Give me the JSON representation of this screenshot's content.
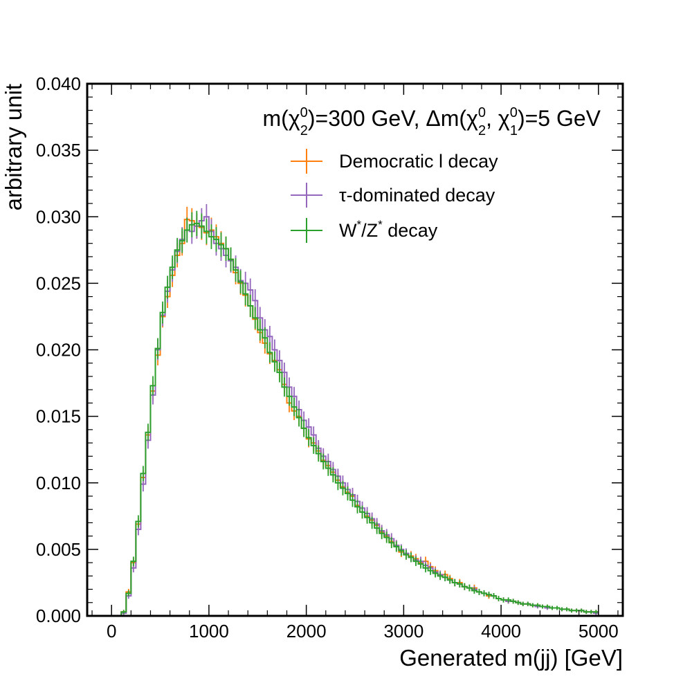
{
  "chart_data": {
    "type": "line",
    "xlabel": "Generated m(jj) [GeV]",
    "ylabel": "arbitrary unit",
    "xlim": [
      -250,
      5250
    ],
    "ylim": [
      0,
      0.04
    ],
    "xticks": [
      "0",
      "1000",
      "2000",
      "3000",
      "4000",
      "5000"
    ],
    "yticks": [
      "0.000",
      "0.005",
      "0.010",
      "0.015",
      "0.020",
      "0.025",
      "0.030",
      "0.035",
      "0.040"
    ],
    "grid": false,
    "legend_position": "top-right",
    "annotation": {
      "prefix": "m(",
      "chi": "χ",
      "chi_sub_a": "2",
      "chi_sup_a": "0",
      "mid": ")=300 GeV, Δm(",
      "chi_sub_b": "2",
      "chi_sup_b": "0",
      "comma": ", ",
      "chi_sub_c": "1",
      "chi_sup_c": "0",
      "suffix": ")=5 GeV"
    },
    "legend": [
      {
        "name_main": "Democratic ",
        "name_char": "l",
        "name_rest": " decay",
        "color": "#ff7f0e"
      },
      {
        "name_main": "",
        "name_char": "τ",
        "name_rest": "-dominated decay",
        "color": "#9467bd"
      },
      {
        "name_main": "W",
        "name_sup": "*",
        "name_mid": "/Z",
        "name_sup2": "*",
        "name_rest": " decay",
        "color": "#2ca02c"
      }
    ],
    "bin_width": 50,
    "bin_start": 0,
    "series": [
      {
        "color": "#ff7f0e",
        "values": [
          0.0,
          0.0,
          0.0003,
          0.0018,
          0.004,
          0.0069,
          0.0104,
          0.0136,
          0.0169,
          0.0196,
          0.0225,
          0.024,
          0.0256,
          0.0271,
          0.028,
          0.0298,
          0.0297,
          0.0293,
          0.0292,
          0.0288,
          0.029,
          0.0285,
          0.028,
          0.0276,
          0.0268,
          0.0258,
          0.025,
          0.0241,
          0.0233,
          0.0223,
          0.0213,
          0.0205,
          0.0197,
          0.0192,
          0.0185,
          0.0174,
          0.016,
          0.0154,
          0.015,
          0.0141,
          0.0133,
          0.013,
          0.0124,
          0.0117,
          0.0113,
          0.0108,
          0.0102,
          0.0097,
          0.0093,
          0.009,
          0.0083,
          0.0078,
          0.0075,
          0.0072,
          0.0068,
          0.0063,
          0.006,
          0.0056,
          0.0053,
          0.0048,
          0.0046,
          0.0045,
          0.0043,
          0.004,
          0.0041,
          0.0037,
          0.0034,
          0.0031,
          0.0031,
          0.0028,
          0.0025,
          0.0025,
          0.0022,
          0.0021,
          0.0021,
          0.0018,
          0.0017,
          0.0015,
          0.0015,
          0.0013,
          0.0012,
          0.0011,
          0.0011,
          0.001,
          0.0009,
          0.0009,
          0.0008,
          0.0008,
          0.0007,
          0.0007,
          0.0006,
          0.0006,
          0.0005,
          0.0005,
          0.0004,
          0.0004,
          0.0004,
          0.0003,
          0.0003,
          0.0003
        ]
      },
      {
        "color": "#9467bd",
        "values": [
          0.0,
          0.0,
          0.0002,
          0.0015,
          0.0036,
          0.0065,
          0.0099,
          0.0132,
          0.0166,
          0.02,
          0.0226,
          0.0244,
          0.026,
          0.0274,
          0.0283,
          0.029,
          0.0289,
          0.0293,
          0.0297,
          0.03,
          0.0289,
          0.028,
          0.0276,
          0.0271,
          0.0267,
          0.0262,
          0.0252,
          0.025,
          0.0245,
          0.0237,
          0.0224,
          0.0215,
          0.021,
          0.02,
          0.0192,
          0.0183,
          0.0172,
          0.0165,
          0.0155,
          0.0147,
          0.0142,
          0.0136,
          0.0126,
          0.012,
          0.0116,
          0.011,
          0.0105,
          0.01,
          0.0095,
          0.0091,
          0.0086,
          0.0081,
          0.0077,
          0.0073,
          0.0069,
          0.0064,
          0.0061,
          0.0058,
          0.0053,
          0.005,
          0.0047,
          0.0044,
          0.0042,
          0.0041,
          0.0038,
          0.0036,
          0.0033,
          0.0031,
          0.0029,
          0.0027,
          0.0025,
          0.0024,
          0.0022,
          0.0021,
          0.002,
          0.0018,
          0.0017,
          0.0016,
          0.0015,
          0.0013,
          0.0012,
          0.0011,
          0.0011,
          0.001,
          0.0009,
          0.0009,
          0.0008,
          0.0007,
          0.0007,
          0.0006,
          0.0006,
          0.0006,
          0.0005,
          0.0005,
          0.0004,
          0.0004,
          0.0004,
          0.0003,
          0.0003,
          0.0002
        ]
      },
      {
        "color": "#2ca02c",
        "values": [
          0.0,
          0.0,
          0.0003,
          0.0017,
          0.0041,
          0.0071,
          0.0107,
          0.0138,
          0.0173,
          0.0201,
          0.0228,
          0.0247,
          0.0262,
          0.0275,
          0.0282,
          0.029,
          0.0294,
          0.0295,
          0.0293,
          0.0289,
          0.0285,
          0.0283,
          0.0279,
          0.0276,
          0.0268,
          0.026,
          0.0251,
          0.0242,
          0.0233,
          0.0224,
          0.0215,
          0.0209,
          0.0198,
          0.0191,
          0.0183,
          0.0172,
          0.0165,
          0.0157,
          0.0149,
          0.0141,
          0.0134,
          0.0128,
          0.0122,
          0.0116,
          0.0111,
          0.0106,
          0.01,
          0.0096,
          0.0092,
          0.0087,
          0.0082,
          0.0078,
          0.0074,
          0.007,
          0.0066,
          0.0062,
          0.0059,
          0.0055,
          0.0052,
          0.0049,
          0.0046,
          0.0044,
          0.0041,
          0.0039,
          0.0036,
          0.0034,
          0.0032,
          0.003,
          0.0029,
          0.0027,
          0.0025,
          0.0024,
          0.0022,
          0.0021,
          0.0019,
          0.0018,
          0.0017,
          0.0016,
          0.0015,
          0.0013,
          0.0012,
          0.0012,
          0.0011,
          0.001,
          0.0009,
          0.0009,
          0.0008,
          0.0008,
          0.0007,
          0.0007,
          0.0006,
          0.0006,
          0.0005,
          0.0005,
          0.0004,
          0.0004,
          0.0004,
          0.0003,
          0.0003,
          0.0003
        ]
      }
    ]
  }
}
